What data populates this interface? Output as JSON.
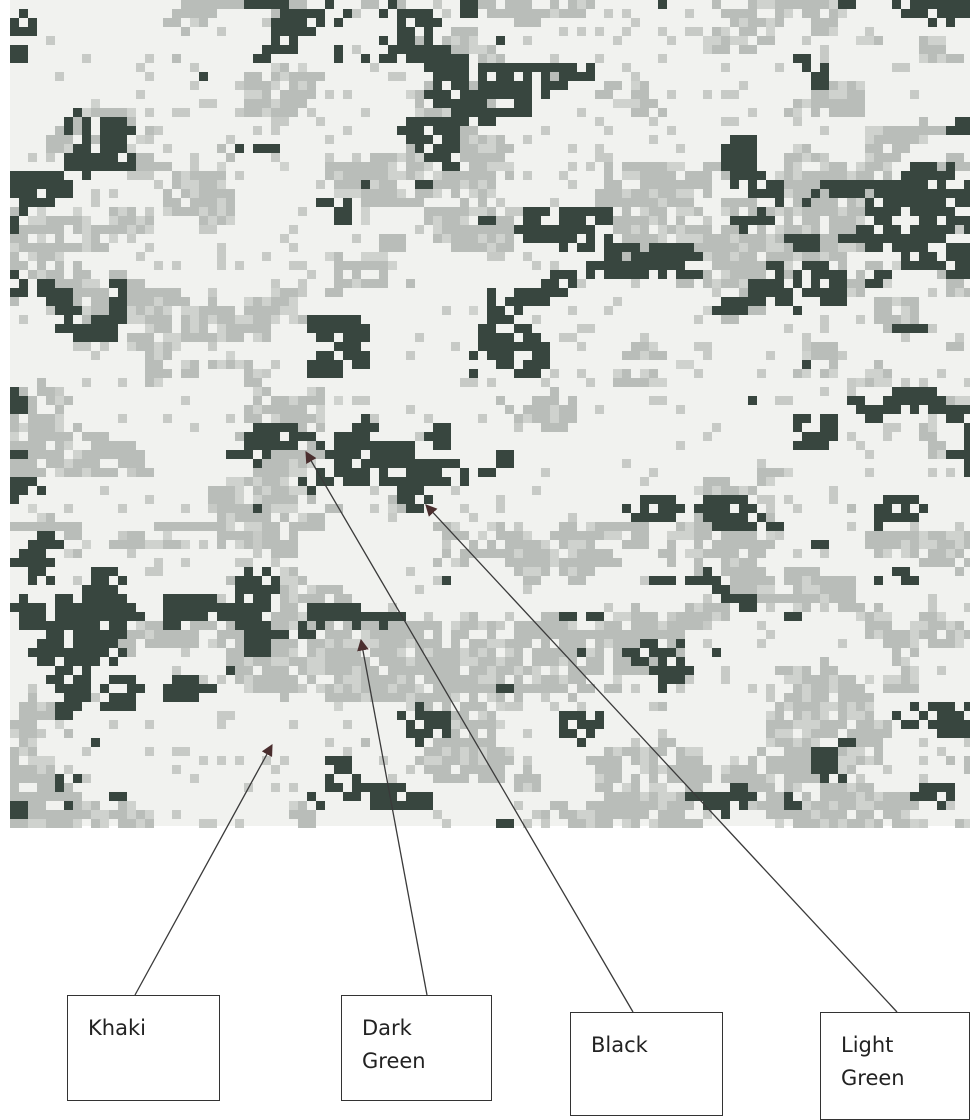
{
  "labels": [
    "Khaki",
    "Dark Green",
    "Black",
    "Light Green"
  ]
}
